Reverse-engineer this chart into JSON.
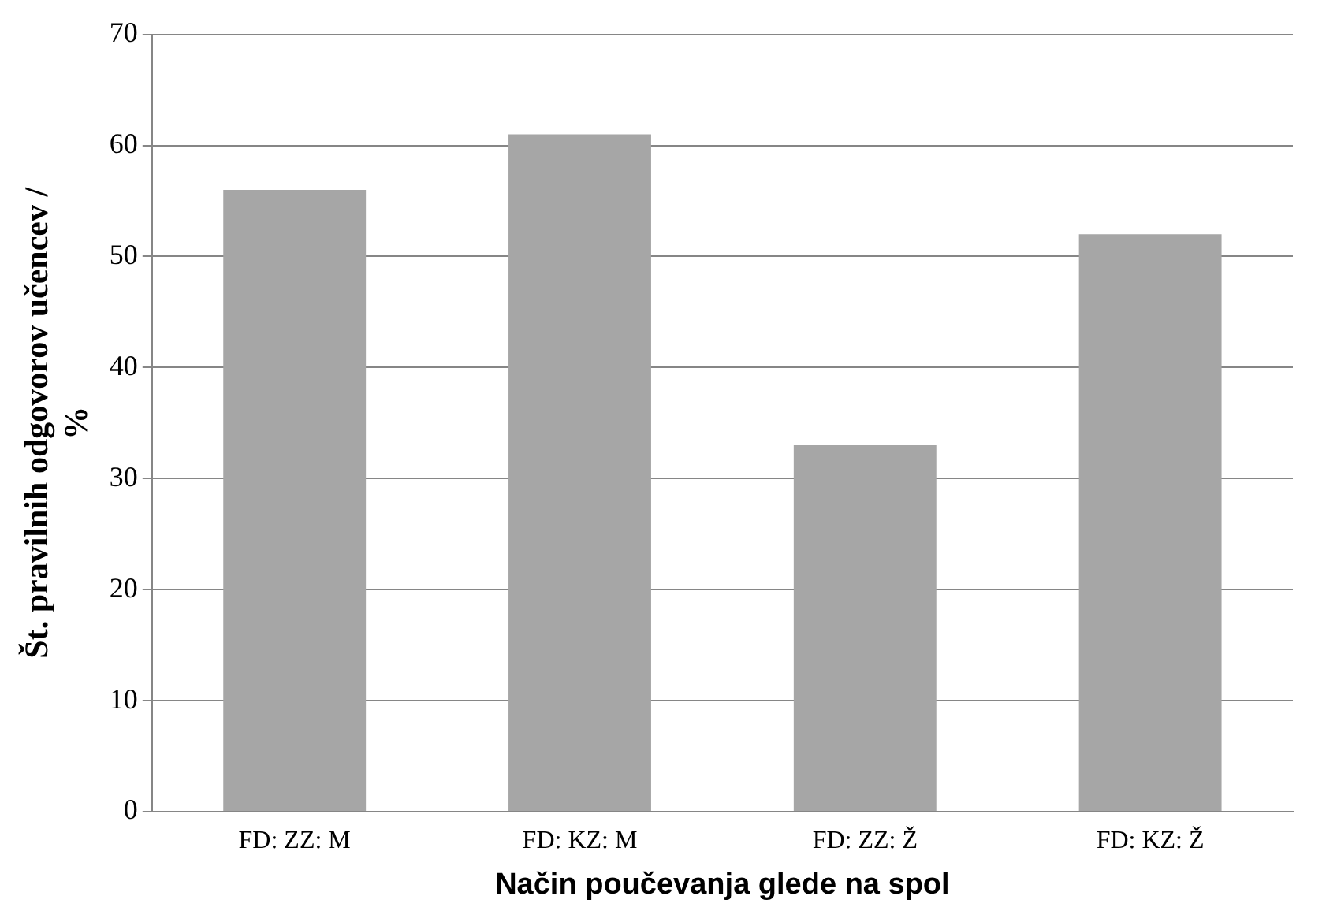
{
  "chart_data": {
    "type": "bar",
    "xlabel": "Način poučevanja glede na spol",
    "ylabel": "Št. pravilnih odgovorov učencev /\n%",
    "categories": [
      "FD: ZZ: M",
      "FD: KZ: M",
      "FD: ZZ: Ž",
      "FD: KZ: Ž"
    ],
    "values": [
      56,
      61,
      33,
      52
    ],
    "color": "#a6a6a6",
    "ylim": [
      0,
      70
    ],
    "yticks": [
      0,
      10,
      20,
      30,
      40,
      50,
      60,
      70
    ],
    "grid": "y",
    "legend": false
  }
}
